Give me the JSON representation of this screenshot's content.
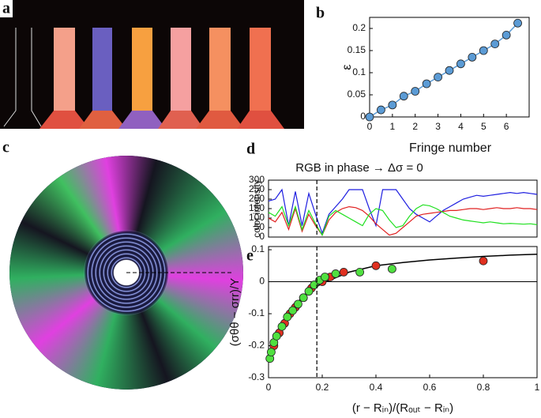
{
  "photo_labels": [
    "a",
    "c"
  ],
  "chart_data": [
    {
      "type": "scatter",
      "panel_label": "b",
      "xlabel": "Fringe number",
      "ylabel": "ε",
      "xlim": [
        0,
        7
      ],
      "ylim": [
        0,
        0.225
      ],
      "xticks": [
        0,
        1,
        2,
        3,
        4,
        5,
        6
      ],
      "yticks": [
        0,
        0.05,
        0.1,
        0.15,
        0.2
      ],
      "series": [
        {
          "color": "#5b9bd5",
          "line": true,
          "markers": true,
          "x": [
            0,
            0.5,
            1,
            1.5,
            2,
            2.5,
            3,
            3.5,
            4,
            4.5,
            5,
            5.5,
            6,
            6.5
          ],
          "values": [
            0,
            0.016,
            0.027,
            0.047,
            0.058,
            0.075,
            0.09,
            0.105,
            0.12,
            0.135,
            0.15,
            0.165,
            0.185,
            0.212
          ]
        }
      ]
    },
    {
      "type": "line",
      "panel_label": "d",
      "title": "RGB in phase → Δσ = 0",
      "ylabel": "color intensity",
      "xlim": [
        0,
        1
      ],
      "ylim": [
        0,
        300
      ],
      "yticks": [
        0,
        50,
        100,
        150,
        200,
        250,
        300
      ],
      "vline": 0.18,
      "x": [
        0,
        0.025,
        0.05,
        0.075,
        0.1,
        0.125,
        0.15,
        0.175,
        0.2,
        0.225,
        0.25,
        0.275,
        0.3,
        0.325,
        0.35,
        0.375,
        0.4,
        0.425,
        0.45,
        0.475,
        0.5,
        0.525,
        0.55,
        0.575,
        0.6,
        0.625,
        0.65,
        0.675,
        0.7,
        0.725,
        0.75,
        0.775,
        0.8,
        0.825,
        0.85,
        0.875,
        0.9,
        0.925,
        0.95,
        0.975,
        1
      ],
      "series": [
        {
          "color": "#1f1fe0",
          "line": true,
          "values": [
            190,
            200,
            250,
            60,
            240,
            60,
            230,
            120,
            20,
            120,
            160,
            200,
            250,
            250,
            250,
            150,
            60,
            250,
            250,
            250,
            200,
            150,
            120,
            100,
            80,
            110,
            140,
            160,
            180,
            200,
            210,
            220,
            215,
            220,
            225,
            230,
            235,
            230,
            235,
            230,
            225
          ]
        },
        {
          "color": "#e02020",
          "line": true,
          "values": [
            100,
            80,
            130,
            40,
            150,
            30,
            120,
            60,
            10,
            90,
            130,
            150,
            160,
            155,
            140,
            110,
            70,
            40,
            10,
            20,
            50,
            80,
            110,
            120,
            125,
            130,
            135,
            140,
            140,
            145,
            150,
            150,
            145,
            150,
            155,
            150,
            150,
            155,
            150,
            150,
            145
          ]
        },
        {
          "color": "#20e020",
          "line": true,
          "values": [
            130,
            110,
            160,
            60,
            160,
            40,
            140,
            70,
            10,
            110,
            140,
            120,
            100,
            80,
            60,
            120,
            150,
            140,
            90,
            50,
            60,
            110,
            150,
            170,
            165,
            150,
            130,
            110,
            100,
            90,
            85,
            80,
            75,
            80,
            75,
            70,
            72,
            70,
            68,
            70,
            65
          ]
        }
      ]
    },
    {
      "type": "scatter",
      "panel_label": "e",
      "xlabel": "(r − Rᵢₙ)/(Rₒᵤₜ − Rᵢₙ)",
      "ylabel": "(σθθ − σrr)/Y",
      "xlim": [
        0,
        1
      ],
      "ylim": [
        -0.3,
        0.11
      ],
      "xticks": [
        0,
        0.2,
        0.4,
        0.6,
        0.8,
        1
      ],
      "yticks": [
        -0.3,
        -0.2,
        -0.1,
        0,
        0.1
      ],
      "vline": 0.18,
      "hline": 0,
      "series": [
        {
          "color": "#000000",
          "line": true,
          "x": [
            0,
            0.02,
            0.05,
            0.1,
            0.15,
            0.2,
            0.3,
            0.4,
            0.5,
            0.6,
            0.7,
            0.8,
            0.9,
            1
          ],
          "values": [
            -0.25,
            -0.19,
            -0.13,
            -0.07,
            -0.03,
            -0.005,
            0.03,
            0.05,
            0.06,
            0.068,
            0.074,
            0.079,
            0.083,
            0.086
          ]
        },
        {
          "color": "#e03020",
          "markers": true,
          "x": [
            0.02,
            0.04,
            0.06,
            0.08,
            0.1,
            0.13,
            0.16,
            0.2,
            0.23,
            0.28,
            0.4,
            0.8
          ],
          "values": [
            -0.2,
            -0.16,
            -0.13,
            -0.1,
            -0.08,
            -0.05,
            -0.02,
            0,
            0.015,
            0.03,
            0.05,
            0.065
          ]
        },
        {
          "color": "#50e040",
          "markers": true,
          "x": [
            0.005,
            0.01,
            0.02,
            0.03,
            0.05,
            0.07,
            0.09,
            0.11,
            0.13,
            0.15,
            0.17,
            0.19,
            0.21,
            0.25,
            0.34,
            0.46
          ],
          "values": [
            -0.24,
            -0.22,
            -0.19,
            -0.17,
            -0.14,
            -0.11,
            -0.09,
            -0.07,
            -0.05,
            -0.03,
            -0.01,
            0.005,
            0.015,
            0.025,
            0.03,
            0.04
          ]
        }
      ]
    }
  ]
}
